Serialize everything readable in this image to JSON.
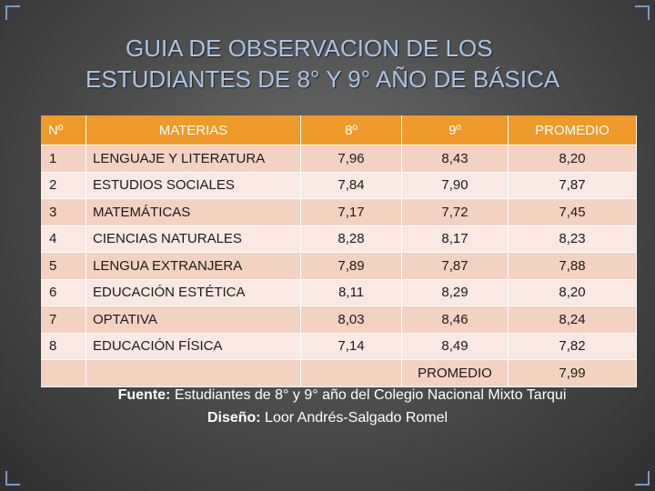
{
  "title": {
    "line1": "GUIA DE OBSERVACION DE LOS",
    "line2": "ESTUDIANTES DE 8° Y 9° AÑO DE BÁSICA"
  },
  "table": {
    "headers": {
      "num": "Nº",
      "materias": "MATERIAS",
      "g8": "8º",
      "g9": "9º",
      "promedio": "PROMEDIO"
    },
    "rows": [
      {
        "num": "1",
        "materia": "LENGUAJE Y LITERATURA",
        "g8": "7,96",
        "g9": "8,43",
        "promedio": "8,20"
      },
      {
        "num": "2",
        "materia": "ESTUDIOS SOCIALES",
        "g8": "7,84",
        "g9": "7,90",
        "promedio": "7,87"
      },
      {
        "num": "3",
        "materia": "MATEMÁTICAS",
        "g8": "7,17",
        "g9": "7,72",
        "promedio": "7,45"
      },
      {
        "num": "4",
        "materia": "CIENCIAS NATURALES",
        "g8": "8,28",
        "g9": "8,17",
        "promedio": "8,23"
      },
      {
        "num": "5",
        "materia": "LENGUA EXTRANJERA",
        "g8": "7,89",
        "g9": "7,87",
        "promedio": "7,88"
      },
      {
        "num": "6",
        "materia": "EDUCACIÓN ESTÉTICA",
        "g8": "8,11",
        "g9": "8,29",
        "promedio": "8,20"
      },
      {
        "num": "7",
        "materia": "OPTATIVA",
        "g8": "8,03",
        "g9": "8,46",
        "promedio": "8,24"
      },
      {
        "num": "8",
        "materia": "EDUCACIÓN FÍSICA",
        "g8": "7,14",
        "g9": "8,49",
        "promedio": "7,82"
      }
    ],
    "total": {
      "label": "PROMEDIO",
      "value": "7,99"
    }
  },
  "footer": {
    "fuente_label": "Fuente:",
    "fuente_text": " Estudiantes de 8° y 9° año del Colegio Nacional Mixto Tarqui",
    "diseno_label": "Diseño:",
    "diseno_text": " Loor Andrés-Salgado Romel"
  },
  "colors": {
    "header": "#f09a2a",
    "row_odd": "#f4d2c1",
    "row_even": "#f9e9e2",
    "title": "#a9c4e6"
  }
}
